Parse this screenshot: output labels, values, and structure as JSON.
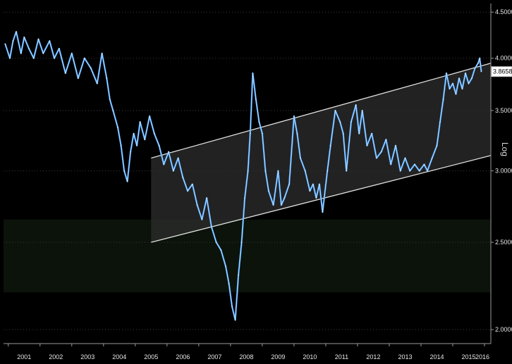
{
  "chart_data": {
    "type": "line",
    "title": "",
    "xlabel": "",
    "ylabel": "",
    "scale_label": "Log",
    "y_scale": "log",
    "ylim": [
      1.93,
      4.6
    ],
    "xlim": [
      2000.85,
      2016.2
    ],
    "grid": true,
    "y_ticks": [
      2.0,
      2.5,
      3.0,
      3.5,
      4.0,
      4.5
    ],
    "y_tick_labels": [
      "2.0000",
      "2.5000",
      "3.0000",
      "3.5000",
      "4.0000",
      "4.5000"
    ],
    "x_tick_labels": [
      "2001",
      "2002",
      "2003",
      "2004",
      "2005",
      "2006",
      "2007",
      "2008",
      "2009",
      "2010",
      "2011",
      "2012",
      "2013",
      "2014",
      "2015",
      "2016"
    ],
    "last_value": 3.8658,
    "last_value_label": "3.8658",
    "colors": {
      "series": "#4da6ff",
      "series_highlight": "#ffffff",
      "channel_lines": "#e0e0e0",
      "channel_fill": "#2e2e2e",
      "background": "#000000"
    },
    "series": [
      {
        "x": [
          2000.9,
          2001.05,
          2001.15,
          2001.25,
          2001.4,
          2001.5,
          2001.65,
          2001.8,
          2001.95,
          2002.1,
          2002.3,
          2002.45,
          2002.6,
          2002.8,
          2003.0,
          2003.2,
          2003.4,
          2003.6,
          2003.8,
          2003.95,
          2004.1,
          2004.2,
          2004.3,
          2004.45,
          2004.55,
          2004.65,
          2004.75,
          2004.85,
          2004.95,
          2005.05,
          2005.15,
          2005.3,
          2005.45,
          2005.6,
          2005.75,
          2005.9,
          2006.05,
          2006.2,
          2006.35,
          2006.5,
          2006.65,
          2006.8,
          2006.95,
          2007.1,
          2007.25,
          2007.4,
          2007.55,
          2007.7,
          2007.85,
          2007.95,
          2008.05,
          2008.15,
          2008.25,
          2008.35,
          2008.45,
          2008.55,
          2008.62,
          2008.7,
          2008.8,
          2008.9,
          2009.0,
          2009.1,
          2009.2,
          2009.35,
          2009.5,
          2009.6,
          2009.7,
          2009.85,
          2010.0,
          2010.1,
          2010.2,
          2010.35,
          2010.5,
          2010.6,
          2010.7,
          2010.8,
          2010.9,
          2011.05,
          2011.15,
          2011.3,
          2011.45,
          2011.55,
          2011.65,
          2011.8,
          2011.95,
          2012.05,
          2012.15,
          2012.3,
          2012.45,
          2012.6,
          2012.75,
          2012.9,
          2013.05,
          2013.2,
          2013.35,
          2013.5,
          2013.65,
          2013.8,
          2013.95,
          2014.1,
          2014.2,
          2014.35,
          2014.5,
          2014.6,
          2014.7,
          2014.8,
          2014.9,
          2015.0,
          2015.1,
          2015.2,
          2015.3,
          2015.4,
          2015.5,
          2015.6,
          2015.7,
          2015.8,
          2015.85,
          2015.9
        ],
        "values": [
          4.15,
          4.0,
          4.18,
          4.28,
          4.05,
          4.22,
          4.1,
          4.0,
          4.2,
          4.05,
          4.18,
          4.0,
          4.1,
          3.85,
          4.05,
          3.8,
          4.0,
          3.9,
          3.75,
          4.05,
          3.8,
          3.6,
          3.5,
          3.35,
          3.2,
          3.0,
          2.92,
          3.15,
          3.3,
          3.2,
          3.4,
          3.25,
          3.45,
          3.3,
          3.2,
          3.05,
          3.15,
          3.0,
          3.1,
          2.95,
          2.85,
          2.9,
          2.75,
          2.65,
          2.8,
          2.6,
          2.5,
          2.45,
          2.35,
          2.25,
          2.12,
          2.05,
          2.3,
          2.5,
          2.8,
          3.0,
          3.3,
          3.85,
          3.6,
          3.4,
          3.3,
          3.0,
          2.85,
          2.75,
          3.0,
          2.75,
          2.8,
          2.9,
          3.45,
          3.3,
          3.1,
          3.0,
          2.85,
          2.9,
          2.8,
          2.9,
          2.7,
          3.0,
          3.2,
          3.5,
          3.4,
          3.3,
          3.0,
          3.4,
          3.55,
          3.3,
          3.5,
          3.2,
          3.3,
          3.1,
          3.15,
          3.25,
          3.05,
          3.2,
          3.0,
          3.1,
          3.0,
          3.05,
          3.0,
          3.05,
          3.0,
          3.1,
          3.2,
          3.4,
          3.6,
          3.85,
          3.7,
          3.75,
          3.65,
          3.8,
          3.7,
          3.85,
          3.75,
          3.8,
          3.9,
          3.95,
          4.0,
          3.8658
        ]
      }
    ]
  }
}
